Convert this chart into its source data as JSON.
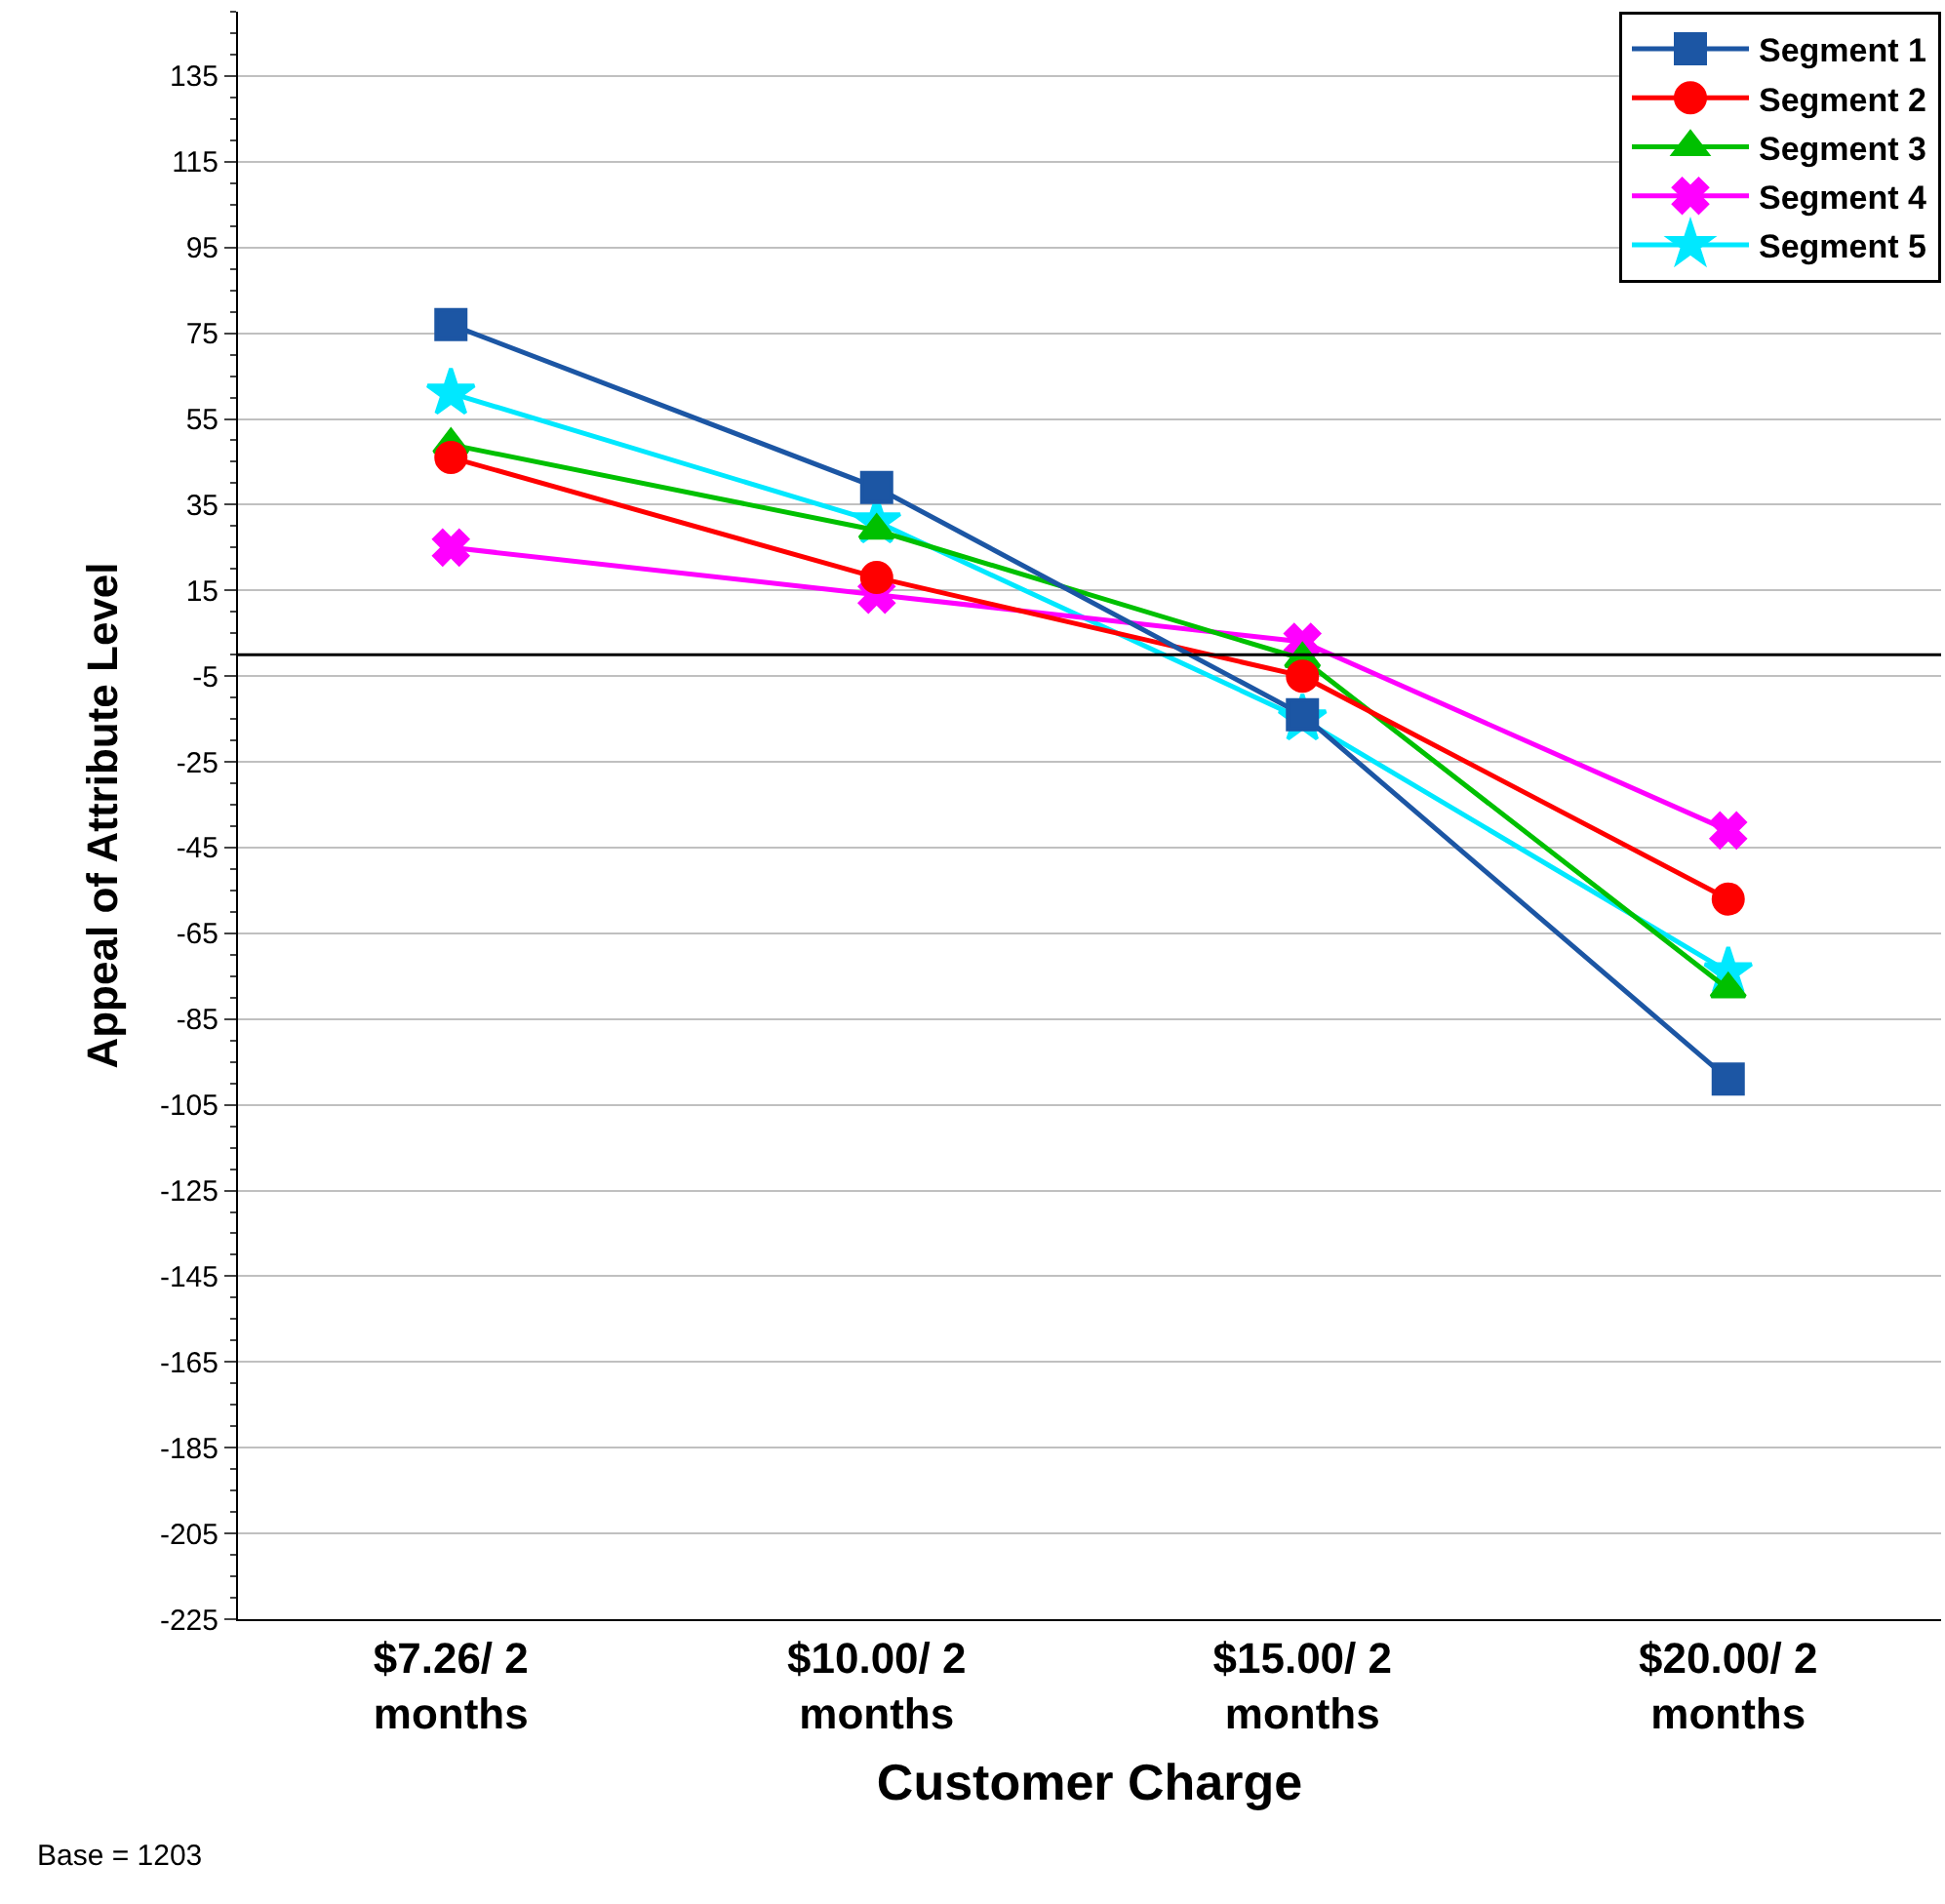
{
  "chart_data": {
    "type": "line",
    "xlabel": "Customer Charge",
    "ylabel": "Appeal of Attribute Level",
    "categories": [
      "$7.26/ 2 months",
      "$10.00/ 2 months",
      "$15.00/ 2 months",
      "$20.00/ 2 months"
    ],
    "series": [
      {
        "name": "Segment 1",
        "color": "#1c56a4",
        "marker": "square",
        "values": [
          77,
          39,
          -14,
          -99
        ]
      },
      {
        "name": "Segment 2",
        "color": "#ff0000",
        "marker": "circle",
        "values": [
          46,
          18,
          -5,
          -57
        ]
      },
      {
        "name": "Segment 3",
        "color": "#00c000",
        "marker": "triangle",
        "values": [
          49,
          29,
          -1,
          -78
        ]
      },
      {
        "name": "Segment 4",
        "color": "#ff00ff",
        "marker": "cross",
        "values": [
          25,
          14,
          3,
          -41
        ]
      },
      {
        "name": "Segment 5",
        "color": "#00e8ff",
        "marker": "star",
        "values": [
          61,
          31,
          -15,
          -74
        ]
      }
    ],
    "ylim": [
      -225,
      150
    ],
    "yticks": [
      -225,
      -205,
      -185,
      -165,
      -145,
      -125,
      -105,
      -85,
      -65,
      -45,
      -25,
      -5,
      15,
      35,
      55,
      75,
      95,
      115,
      135
    ],
    "ref_lines": [
      {
        "axis": "y",
        "value": 0,
        "color": "#000000"
      }
    ],
    "grid": "y",
    "legend": "top right",
    "line_style": "solid",
    "annotations": [
      "Base = 1203"
    ]
  }
}
